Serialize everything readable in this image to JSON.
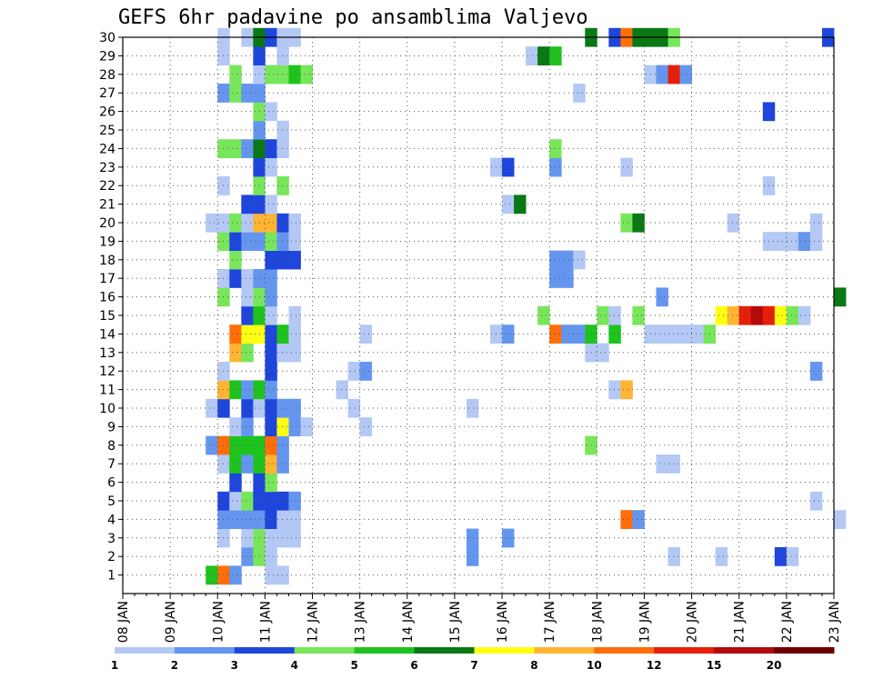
{
  "chart_data": {
    "type": "heatmap",
    "title": "GEFS 6hr padavine po ansamblima Valjevo",
    "x_tick_labels": [
      "08 JAN",
      "09 JAN",
      "10 JAN",
      "11 JAN",
      "12 JAN",
      "13 JAN",
      "14 JAN",
      "15 JAN",
      "16 JAN",
      "17 JAN",
      "18 JAN",
      "19 JAN",
      "20 JAN",
      "21 JAN",
      "22 JAN",
      "23 JAN"
    ],
    "x_range": [
      "08 JAN 00Z",
      "23 JAN 00Z"
    ],
    "x_step_hours": 6,
    "y_range": [
      0,
      30
    ],
    "y_ticks": [
      1,
      2,
      3,
      4,
      5,
      6,
      7,
      8,
      9,
      10,
      11,
      12,
      13,
      14,
      15,
      16,
      17,
      18,
      19,
      20,
      21,
      22,
      23,
      24,
      25,
      26,
      27,
      28,
      29,
      30
    ],
    "grid": "dotted",
    "legend": {
      "placement": "bottom",
      "boundaries": [
        "1",
        "2",
        "3",
        "4",
        "5",
        "6",
        "7",
        "8",
        "10",
        "12",
        "15",
        "20"
      ],
      "colors": [
        "#b4c8f5",
        "#6496f0",
        "#1e46dc",
        "#78e65a",
        "#1ec31e",
        "#0a7814",
        "#ffff14",
        "#ffb432",
        "#ff6e0a",
        "#e61e0a",
        "#b40a0a",
        "#6e0000"
      ]
    },
    "color_scale_note": "cell color class: 0=1-2,1=2-3,2=3-4,3=4-5,4=5-6,5=6-7,6=7-8,7=8-10,8=10-12,9=12-15,10=15-20,11=>20",
    "rows": {
      "30": [
        [
          8,
          0
        ],
        [
          10,
          0
        ],
        [
          11,
          5
        ],
        [
          12,
          2
        ],
        [
          13,
          0
        ],
        [
          14,
          0
        ],
        [
          39,
          5
        ],
        [
          41,
          2
        ],
        [
          42,
          8
        ],
        [
          43,
          5
        ],
        [
          44,
          5
        ],
        [
          45,
          5
        ],
        [
          46,
          3
        ],
        [
          59,
          2
        ]
      ],
      "29": [
        [
          8,
          0
        ],
        [
          11,
          2
        ],
        [
          13,
          0
        ],
        [
          34,
          0
        ],
        [
          35,
          5
        ],
        [
          36,
          4
        ]
      ],
      "28": [
        [
          9,
          3
        ],
        [
          11,
          0
        ],
        [
          12,
          3
        ],
        [
          13,
          3
        ],
        [
          14,
          4
        ],
        [
          15,
          3
        ],
        [
          44,
          0
        ],
        [
          45,
          1
        ],
        [
          46,
          9
        ],
        [
          47,
          1
        ]
      ],
      "27": [
        [
          8,
          1
        ],
        [
          9,
          3
        ],
        [
          10,
          1
        ],
        [
          11,
          1
        ],
        [
          38,
          0
        ]
      ],
      "26": [
        [
          11,
          3
        ],
        [
          12,
          0
        ],
        [
          54,
          2
        ]
      ],
      "25": [
        [
          11,
          1
        ],
        [
          13,
          0
        ]
      ],
      "24": [
        [
          8,
          3
        ],
        [
          9,
          3
        ],
        [
          10,
          1
        ],
        [
          11,
          5
        ],
        [
          12,
          2
        ],
        [
          13,
          0
        ],
        [
          36,
          3
        ]
      ],
      "23": [
        [
          11,
          2
        ],
        [
          12,
          0
        ],
        [
          31,
          0
        ],
        [
          32,
          2
        ],
        [
          36,
          1
        ],
        [
          42,
          0
        ]
      ],
      "22": [
        [
          8,
          0
        ],
        [
          11,
          3
        ],
        [
          13,
          3
        ],
        [
          54,
          0
        ]
      ],
      "21": [
        [
          10,
          2
        ],
        [
          11,
          2
        ],
        [
          12,
          0
        ],
        [
          32,
          0
        ],
        [
          33,
          5
        ]
      ],
      "20": [
        [
          7,
          0
        ],
        [
          8,
          0
        ],
        [
          9,
          3
        ],
        [
          10,
          0
        ],
        [
          11,
          7
        ],
        [
          12,
          7
        ],
        [
          13,
          2
        ],
        [
          14,
          0
        ],
        [
          42,
          3
        ],
        [
          43,
          5
        ],
        [
          51,
          0
        ],
        [
          58,
          0
        ]
      ],
      "19": [
        [
          8,
          3
        ],
        [
          9,
          2
        ],
        [
          10,
          1
        ],
        [
          11,
          1
        ],
        [
          12,
          3
        ],
        [
          13,
          1
        ],
        [
          14,
          0
        ],
        [
          54,
          0
        ],
        [
          55,
          0
        ],
        [
          56,
          0
        ],
        [
          57,
          1
        ],
        [
          58,
          0
        ]
      ],
      "18": [
        [
          9,
          3
        ],
        [
          12,
          2
        ],
        [
          13,
          2
        ],
        [
          14,
          2
        ],
        [
          36,
          1
        ],
        [
          37,
          1
        ],
        [
          38,
          0
        ]
      ],
      "17": [
        [
          8,
          0
        ],
        [
          9,
          2
        ],
        [
          10,
          0
        ],
        [
          11,
          1
        ],
        [
          12,
          1
        ],
        [
          36,
          1
        ],
        [
          37,
          1
        ]
      ],
      "16": [
        [
          8,
          3
        ],
        [
          10,
          0
        ],
        [
          11,
          3
        ],
        [
          12,
          1
        ],
        [
          45,
          1
        ],
        [
          60,
          5
        ]
      ],
      "15": [
        [
          10,
          2
        ],
        [
          11,
          4
        ],
        [
          12,
          0
        ],
        [
          14,
          0
        ],
        [
          35,
          3
        ],
        [
          40,
          3
        ],
        [
          41,
          0
        ],
        [
          43,
          3
        ],
        [
          50,
          6
        ],
        [
          51,
          7
        ],
        [
          52,
          9
        ],
        [
          53,
          10
        ],
        [
          54,
          9
        ],
        [
          55,
          6
        ],
        [
          56,
          3
        ],
        [
          57,
          0
        ]
      ],
      "14": [
        [
          9,
          8
        ],
        [
          10,
          6
        ],
        [
          11,
          6
        ],
        [
          12,
          2
        ],
        [
          13,
          4
        ],
        [
          14,
          0
        ],
        [
          20,
          0
        ],
        [
          31,
          0
        ],
        [
          32,
          1
        ],
        [
          36,
          8
        ],
        [
          37,
          1
        ],
        [
          38,
          1
        ],
        [
          39,
          4
        ],
        [
          41,
          4
        ],
        [
          44,
          0
        ],
        [
          45,
          0
        ],
        [
          46,
          0
        ],
        [
          47,
          0
        ],
        [
          48,
          0
        ],
        [
          49,
          3
        ]
      ],
      "13": [
        [
          9,
          7
        ],
        [
          10,
          3
        ],
        [
          12,
          2
        ],
        [
          13,
          0
        ],
        [
          14,
          0
        ],
        [
          39,
          0
        ],
        [
          40,
          0
        ]
      ],
      "12": [
        [
          8,
          0
        ],
        [
          12,
          2
        ],
        [
          19,
          0
        ],
        [
          20,
          1
        ],
        [
          58,
          1
        ]
      ],
      "11": [
        [
          8,
          7
        ],
        [
          9,
          4
        ],
        [
          10,
          1
        ],
        [
          11,
          4
        ],
        [
          12,
          1
        ],
        [
          18,
          0
        ],
        [
          41,
          0
        ],
        [
          42,
          7
        ]
      ],
      "10": [
        [
          7,
          0
        ],
        [
          8,
          2
        ],
        [
          10,
          2
        ],
        [
          11,
          0
        ],
        [
          12,
          2
        ],
        [
          13,
          1
        ],
        [
          14,
          1
        ],
        [
          19,
          0
        ],
        [
          29,
          0
        ]
      ],
      "9": [
        [
          9,
          0
        ],
        [
          10,
          1
        ],
        [
          12,
          2
        ],
        [
          13,
          6
        ],
        [
          14,
          1
        ],
        [
          15,
          0
        ],
        [
          20,
          0
        ]
      ],
      "8": [
        [
          7,
          1
        ],
        [
          8,
          8
        ],
        [
          9,
          4
        ],
        [
          10,
          4
        ],
        [
          11,
          4
        ],
        [
          12,
          8
        ],
        [
          13,
          1
        ],
        [
          39,
          3
        ]
      ],
      "7": [
        [
          8,
          0
        ],
        [
          9,
          4
        ],
        [
          10,
          1
        ],
        [
          11,
          4
        ],
        [
          12,
          7
        ],
        [
          13,
          1
        ],
        [
          45,
          0
        ],
        [
          46,
          0
        ]
      ],
      "6": [
        [
          9,
          2
        ],
        [
          11,
          2
        ],
        [
          12,
          3
        ]
      ],
      "5": [
        [
          8,
          2
        ],
        [
          9,
          0
        ],
        [
          10,
          3
        ],
        [
          11,
          2
        ],
        [
          12,
          2
        ],
        [
          13,
          2
        ],
        [
          14,
          1
        ],
        [
          58,
          0
        ]
      ],
      "4": [
        [
          8,
          1
        ],
        [
          9,
          1
        ],
        [
          10,
          1
        ],
        [
          11,
          1
        ],
        [
          12,
          2
        ],
        [
          13,
          0
        ],
        [
          14,
          0
        ],
        [
          42,
          8
        ],
        [
          43,
          1
        ],
        [
          60,
          0
        ]
      ],
      "3": [
        [
          8,
          0
        ],
        [
          10,
          0
        ],
        [
          11,
          3
        ],
        [
          12,
          0
        ],
        [
          13,
          0
        ],
        [
          14,
          0
        ],
        [
          29,
          1
        ],
        [
          32,
          1
        ]
      ],
      "2": [
        [
          10,
          1
        ],
        [
          11,
          3
        ],
        [
          12,
          0
        ],
        [
          29,
          1
        ],
        [
          46,
          0
        ],
        [
          50,
          0
        ],
        [
          55,
          2
        ],
        [
          56,
          0
        ]
      ],
      "1": [
        [
          7,
          4
        ],
        [
          8,
          8
        ],
        [
          9,
          1
        ],
        [
          12,
          0
        ],
        [
          13,
          0
        ]
      ]
    }
  }
}
